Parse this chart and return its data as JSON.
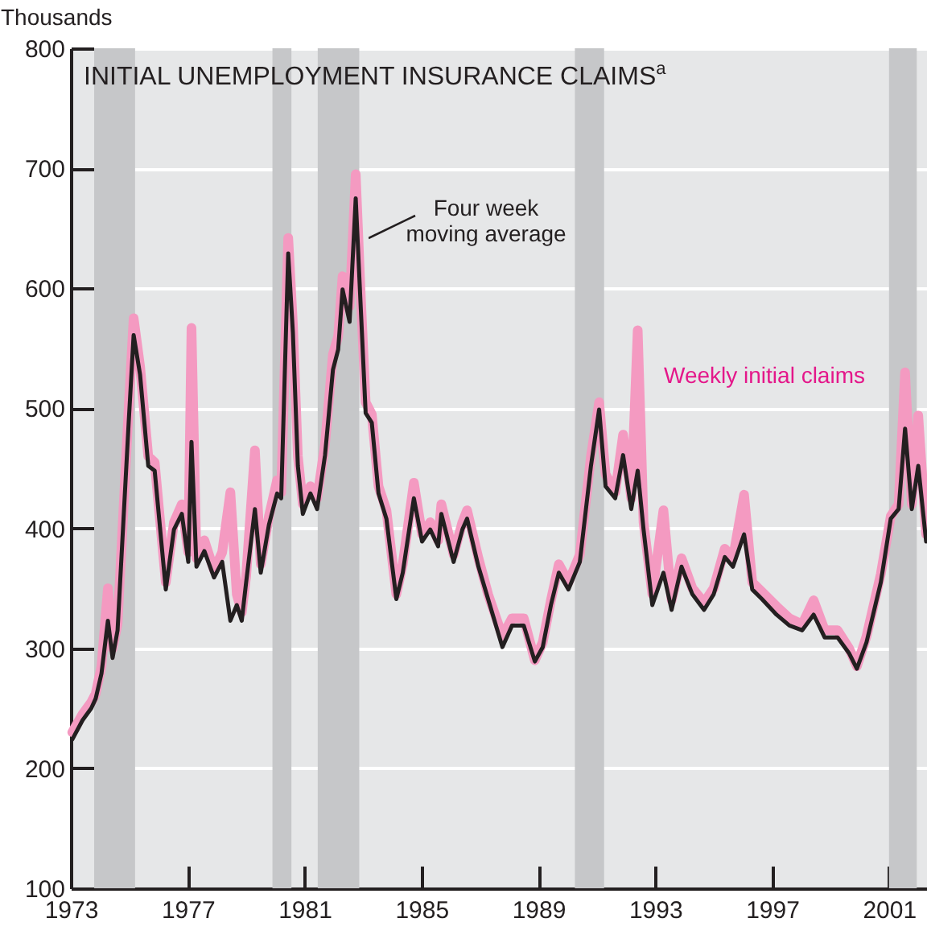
{
  "chart_data": {
    "type": "line",
    "title": "INITIAL UNEMPLOYMENT INSURANCE CLAIMS$^{a}$",
    "ylabel": "Thousands",
    "x": [
      1973.05,
      1973.4,
      1973.7,
      1973.85,
      1974.05,
      1974.27,
      1974.43,
      1974.6,
      1974.98,
      1975.15,
      1975.37,
      1975.65,
      1975.87,
      1976.25,
      1976.53,
      1976.8,
      1977.02,
      1977.13,
      1977.3,
      1977.57,
      1977.9,
      1978.18,
      1978.46,
      1978.68,
      1978.85,
      1979.0,
      1979.3,
      1979.5,
      1979.78,
      1980.06,
      1980.2,
      1980.44,
      1980.6,
      1980.77,
      1980.94,
      1981.2,
      1981.43,
      1981.7,
      1981.97,
      1982.15,
      1982.3,
      1982.54,
      1982.75,
      1982.92,
      1983.09,
      1983.3,
      1983.53,
      1983.8,
      1984.14,
      1984.36,
      1984.74,
      1985.02,
      1985.3,
      1985.57,
      1985.68,
      1986.1,
      1986.4,
      1986.56,
      1986.95,
      1987.28,
      1987.77,
      1988.1,
      1988.5,
      1988.88,
      1989.15,
      1989.43,
      1989.7,
      1990.03,
      1990.42,
      1990.8,
      1991.08,
      1991.3,
      1991.63,
      1991.9,
      1992.18,
      1992.4,
      1992.6,
      1992.9,
      1993.28,
      1993.56,
      1993.9,
      1994.27,
      1994.67,
      1995.0,
      1995.38,
      1995.66,
      1996.04,
      1996.32,
      1996.65,
      1997.15,
      1997.59,
      1998.03,
      1998.42,
      1998.8,
      1999.24,
      1999.63,
      1999.9,
      2000.23,
      2000.72,
      2001.06,
      2001.33,
      2001.55,
      2001.78,
      2002.0,
      2002.27
    ],
    "series": [
      {
        "name": "Weekly initial claims",
        "color": "#f49ac1",
        "values": [
          230,
          245,
          255,
          262,
          285,
          350,
          300,
          320,
          500,
          575,
          535,
          460,
          455,
          355,
          405,
          420,
          380,
          567,
          375,
          390,
          365,
          380,
          430,
          345,
          330,
          360,
          465,
          370,
          410,
          440,
          430,
          642,
          570,
          460,
          420,
          435,
          425,
          470,
          545,
          560,
          610,
          585,
          695,
          595,
          505,
          495,
          435,
          415,
          345,
          370,
          438,
          395,
          405,
          390,
          420,
          378,
          405,
          415,
          375,
          345,
          310,
          325,
          325,
          290,
          305,
          340,
          370,
          355,
          378,
          460,
          505,
          445,
          430,
          478,
          425,
          565,
          405,
          345,
          415,
          340,
          375,
          350,
          338,
          350,
          383,
          375,
          428,
          355,
          347,
          335,
          325,
          320,
          340,
          315,
          315,
          300,
          285,
          310,
          362,
          410,
          420,
          530,
          420,
          494,
          395
        ]
      },
      {
        "name": "Four week moving average",
        "color": "#231f20",
        "values": [
          224,
          240,
          250,
          258,
          279,
          323,
          292,
          315,
          488,
          561,
          528,
          452,
          448,
          349,
          399,
          412,
          372,
          472,
          368,
          381,
          359,
          372,
          323,
          336,
          323,
          355,
          416,
          363,
          403,
          429,
          425,
          629,
          563,
          452,
          412,
          429,
          416,
          461,
          532,
          549,
          599,
          572,
          675,
          585,
          496,
          488,
          429,
          408,
          341,
          363,
          425,
          389,
          399,
          385,
          412,
          372,
          399,
          408,
          368,
          341,
          301,
          319,
          319,
          289,
          301,
          336,
          363,
          349,
          372,
          452,
          499,
          435,
          425,
          461,
          416,
          448,
          399,
          336,
          363,
          332,
          368,
          345,
          332,
          345,
          376,
          368,
          395,
          349,
          341,
          328,
          319,
          315,
          328,
          309,
          309,
          296,
          283,
          305,
          355,
          408,
          416,
          483,
          416,
          452,
          389
        ]
      }
    ],
    "xlim": [
      1973,
      2002.3
    ],
    "xticks": [
      1973,
      1977,
      1981,
      1985,
      1989,
      1993,
      1997,
      2001
    ],
    "ylim": [
      100,
      800
    ],
    "yticks": [
      100,
      200,
      300,
      400,
      500,
      600,
      700,
      800
    ],
    "grid": "y",
    "bands": [
      {
        "axis": "x",
        "from": 1973.8,
        "to": 1975.2,
        "color": "#c6c7c9"
      },
      {
        "axis": "x",
        "from": 1979.9,
        "to": 1980.55,
        "color": "#c6c7c9"
      },
      {
        "axis": "x",
        "from": 1981.45,
        "to": 1982.87,
        "color": "#c6c7c9"
      },
      {
        "axis": "x",
        "from": 1990.25,
        "to": 1991.25,
        "color": "#c6c7c9"
      },
      {
        "axis": "x",
        "from": 2001.0,
        "to": 2001.95,
        "color": "#c6c7c9"
      }
    ]
  }
}
